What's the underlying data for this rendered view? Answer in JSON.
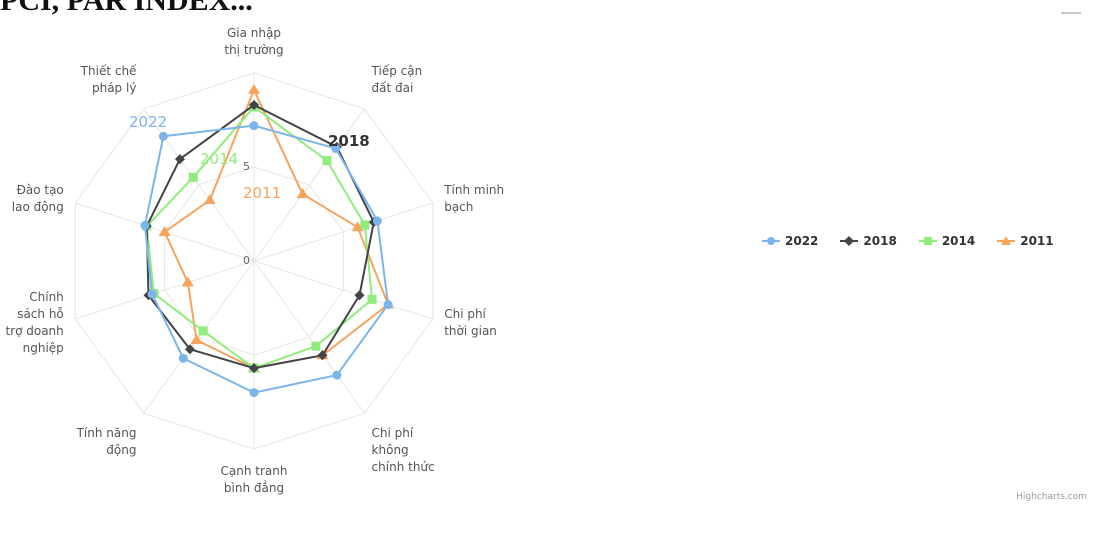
{
  "page": {
    "title": "PCI, PAR INDEX...",
    "credit": "Highcharts.com"
  },
  "chart_data": {
    "type": "radar",
    "title": "",
    "categories": [
      [
        "Gia nhập",
        "thị trường"
      ],
      [
        "Tiếp cận",
        "đất đai"
      ],
      [
        "Tính minh",
        "bạch"
      ],
      [
        "Chi phí",
        "thời gian"
      ],
      [
        "Chi phí",
        "không",
        "chính thức"
      ],
      [
        "Cạnh tranh",
        "bình đẳng"
      ],
      [
        "Tính năng",
        "động"
      ],
      [
        "Chính",
        "sách hỗ",
        "trợ doanh",
        "nghiệp"
      ],
      [
        "Đào tạo",
        "lao động"
      ],
      [
        "Thiết chế",
        "pháp lý"
      ]
    ],
    "radial_ticks": [
      "0",
      "5"
    ],
    "rmax": 10,
    "grid": true,
    "legend_position": "right",
    "series": [
      {
        "name": "2022",
        "color": "#7cb5ec",
        "marker": "circle",
        "values": [
          7.2,
          7.4,
          6.9,
          7.5,
          7.5,
          7.0,
          6.4,
          5.7,
          6.1,
          8.2
        ]
      },
      {
        "name": "2018",
        "color": "#434348",
        "marker": "diamond",
        "values": [
          8.3,
          7.5,
          6.7,
          5.9,
          6.2,
          5.7,
          5.8,
          5.9,
          6.0,
          6.7
        ]
      },
      {
        "name": "2014",
        "color": "#90ed7d",
        "marker": "square",
        "values": [
          8.2,
          6.6,
          6.2,
          6.6,
          5.6,
          5.7,
          4.6,
          5.6,
          6.0,
          5.5
        ]
      },
      {
        "name": "2011",
        "color": "#f7a35c",
        "marker": "triangle",
        "values": [
          9.1,
          4.4,
          5.8,
          7.5,
          6.2,
          5.7,
          5.2,
          3.7,
          5.0,
          4.0
        ]
      }
    ],
    "annotations": [
      {
        "text": "2022",
        "color": "#7cb5ec"
      },
      {
        "text": "2018",
        "color": "#333333"
      },
      {
        "text": "2014",
        "color": "#90ed7d"
      },
      {
        "text": "2011",
        "color": "#f7a35c"
      }
    ]
  }
}
